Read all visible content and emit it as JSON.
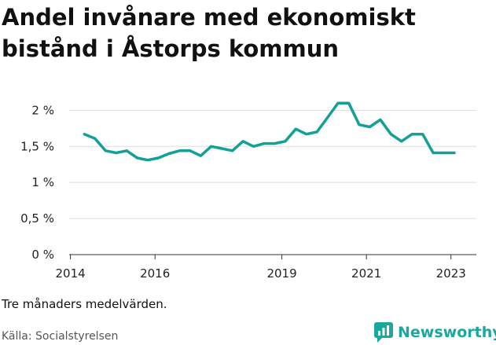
{
  "chart_data": {
    "type": "line",
    "title": "Andel invånare med ekonomiskt bistånd i Åstorps kommun",
    "xlabel": "",
    "ylabel": "",
    "xlim": [
      2013.97,
      2023.6
    ],
    "ylim": [
      0,
      2.2
    ],
    "x_ticks": [
      {
        "value": 2014,
        "label": "2014"
      },
      {
        "value": 2016,
        "label": "2016"
      },
      {
        "value": 2019,
        "label": "2019"
      },
      {
        "value": 2021,
        "label": "2021"
      },
      {
        "value": 2023,
        "label": "2023"
      }
    ],
    "y_ticks": [
      {
        "value": 0,
        "label": "0 %"
      },
      {
        "value": 0.5,
        "label": "0,5 %"
      },
      {
        "value": 1,
        "label": "1 %"
      },
      {
        "value": 1.5,
        "label": "1,5 %"
      },
      {
        "value": 2,
        "label": "2 %"
      }
    ],
    "grid": "horizontal",
    "line_color": "#14a096",
    "series": [
      {
        "x": [
          2014.33,
          2014.58,
          2014.83,
          2015.08,
          2015.33,
          2015.58,
          2015.83,
          2016.08,
          2016.33,
          2016.58,
          2016.83,
          2017.08,
          2017.33,
          2017.58,
          2017.83,
          2018.08,
          2018.33,
          2018.58,
          2018.83,
          2019.08,
          2019.33,
          2019.58,
          2019.83,
          2020.08,
          2020.33,
          2020.58,
          2020.83,
          2021.08,
          2021.33,
          2021.58,
          2021.83,
          2022.08,
          2022.33,
          2022.58,
          2022.83,
          2023.08
        ],
        "values": [
          1.67,
          1.61,
          1.44,
          1.41,
          1.44,
          1.34,
          1.31,
          1.34,
          1.4,
          1.44,
          1.44,
          1.37,
          1.5,
          1.47,
          1.44,
          1.57,
          1.5,
          1.54,
          1.54,
          1.57,
          1.74,
          1.67,
          1.7,
          1.9,
          2.1,
          2.1,
          1.8,
          1.77,
          1.87,
          1.67,
          1.57,
          1.67,
          1.67,
          1.41,
          1.41,
          1.41
        ]
      }
    ]
  },
  "footer": {
    "note": "Tre månaders medelvärden.",
    "source": "Källa: Socialstyrelsen",
    "brand": "Newsworthy"
  }
}
